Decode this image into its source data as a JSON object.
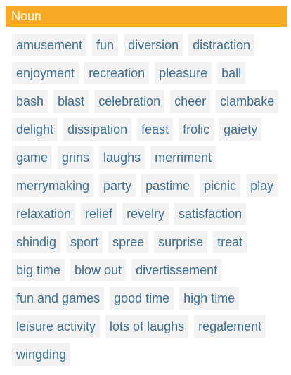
{
  "section": {
    "pos_label": "Noun",
    "header_color": "#f8a823",
    "chip_text_color": "#3f6f93",
    "chip_bg_color": "#f2f2f2",
    "words": [
      "amusement",
      "fun",
      "diversion",
      "distraction",
      "enjoyment",
      "recreation",
      "pleasure",
      "ball",
      "bash",
      "blast",
      "celebration",
      "cheer",
      "clambake",
      "delight",
      "dissipation",
      "feast",
      "frolic",
      "gaiety",
      "game",
      "grins",
      "laughs",
      "merriment",
      "merrymaking",
      "party",
      "pastime",
      "picnic",
      "play",
      "relaxation",
      "relief",
      "revelry",
      "satisfaction",
      "shindig",
      "sport",
      "spree",
      "surprise",
      "treat",
      "big time",
      "blow out",
      "divertissement",
      "fun and games",
      "good time",
      "high time",
      "leisure activity",
      "lots of laughs",
      "regalement",
      "wingding"
    ]
  }
}
